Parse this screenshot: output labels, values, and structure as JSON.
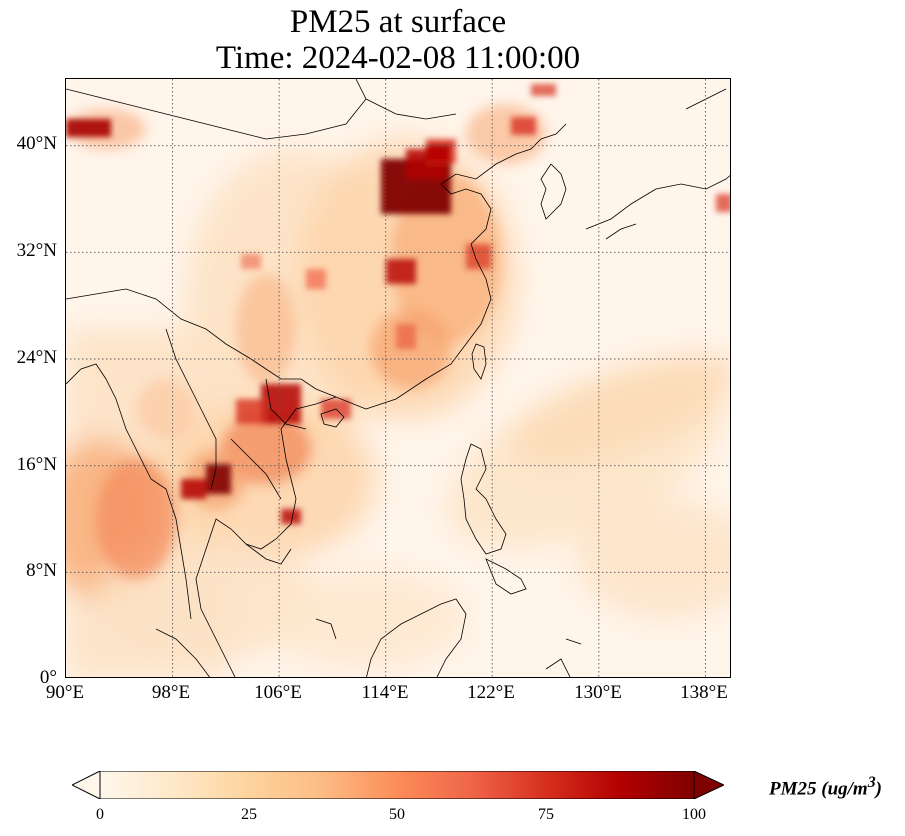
{
  "title": {
    "line1": "PM25 at surface",
    "line2": "Time: 2024-02-08 11:00:00"
  },
  "map": {
    "lon_range": [
      90,
      140
    ],
    "lat_range": [
      0,
      45
    ],
    "lat_ticks": [
      "40°N",
      "32°N",
      "24°N",
      "16°N",
      "8°N",
      "0°"
    ],
    "lon_ticks": [
      "90°E",
      "98°E",
      "106°E",
      "114°E",
      "122°E",
      "130°E",
      "138°E"
    ],
    "gridlines": true,
    "colormap": "OrRd",
    "colormap_stops": [
      "#fff7ec",
      "#fee8c8",
      "#fdd49e",
      "#fdbb84",
      "#fc8d59",
      "#ef6548",
      "#d7301f",
      "#b30000",
      "#7f0000"
    ]
  },
  "colorbar": {
    "ticks": [
      "0",
      "25",
      "50",
      "75",
      "100"
    ],
    "label": "PM25 (ug/m",
    "label_sup": "3",
    "label_close": ")",
    "extend": "both"
  }
}
